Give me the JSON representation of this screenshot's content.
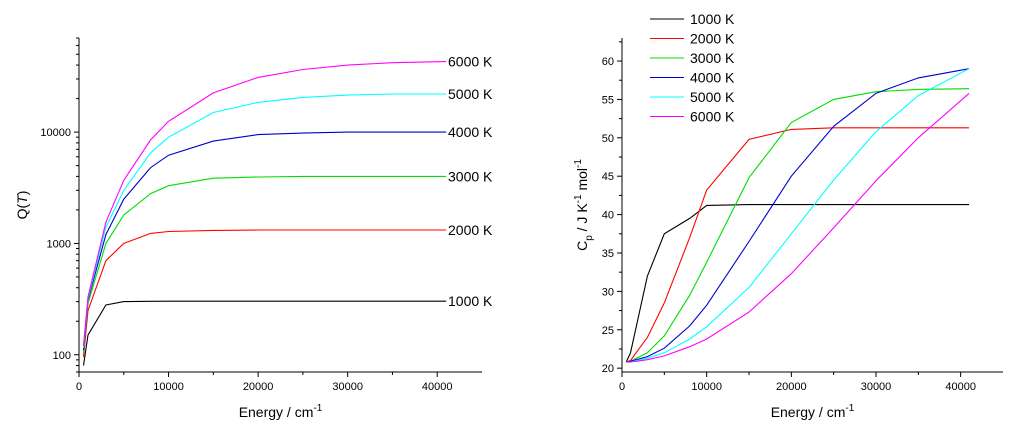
{
  "chart_data": [
    {
      "type": "line",
      "xlabel": "Energy / cm",
      "xlabel_sup": "-1",
      "ylabel": "Q(",
      "ylabel_italic": "T",
      "ylabel_end": ")",
      "yscale": "log",
      "xlim": [
        0,
        45000
      ],
      "ylim": [
        70,
        70000
      ],
      "xticks": [
        0,
        10000,
        20000,
        30000,
        40000
      ],
      "xtick_labels": [
        "0",
        "10000",
        "20000",
        "30000",
        "40000"
      ],
      "yticks": [
        100,
        1000,
        10000
      ],
      "ytick_labels": [
        "100",
        "1000",
        "10000"
      ],
      "grid": false,
      "series_labels_at_line_end": true,
      "series": [
        {
          "name": "1000 K",
          "color": "#000000",
          "x": [
            500,
            1000,
            3000,
            5000,
            8000,
            10000,
            15000,
            20000,
            25000,
            30000,
            35000,
            41000
          ],
          "y": [
            80,
            150,
            280,
            300,
            302,
            303,
            303,
            303,
            303,
            303,
            303,
            303
          ]
        },
        {
          "name": "2000 K",
          "color": "#ff0000",
          "x": [
            500,
            1000,
            3000,
            5000,
            8000,
            10000,
            15000,
            20000,
            25000,
            30000,
            35000,
            41000
          ],
          "y": [
            95,
            250,
            700,
            1000,
            1230,
            1280,
            1310,
            1320,
            1320,
            1320,
            1320,
            1320
          ]
        },
        {
          "name": "3000 K",
          "color": "#00dd00",
          "x": [
            500,
            1000,
            3000,
            5000,
            8000,
            10000,
            15000,
            20000,
            25000,
            30000,
            35000,
            41000
          ],
          "y": [
            105,
            290,
            1000,
            1800,
            2800,
            3300,
            3850,
            3950,
            4000,
            4000,
            4000,
            4000
          ]
        },
        {
          "name": "4000 K",
          "color": "#0000cc",
          "x": [
            500,
            1000,
            3000,
            5000,
            8000,
            10000,
            15000,
            20000,
            25000,
            30000,
            35000,
            41000
          ],
          "y": [
            110,
            310,
            1200,
            2500,
            4800,
            6200,
            8300,
            9500,
            9800,
            10000,
            10000,
            10000
          ]
        },
        {
          "name": "5000 K",
          "color": "#00ffff",
          "x": [
            500,
            1000,
            3000,
            5000,
            8000,
            10000,
            15000,
            20000,
            25000,
            30000,
            35000,
            41000
          ],
          "y": [
            115,
            320,
            1400,
            3000,
            6500,
            9000,
            15000,
            18500,
            20500,
            21500,
            22000,
            22000
          ]
        },
        {
          "name": "6000 K",
          "color": "#ff00ff",
          "x": [
            500,
            1000,
            3000,
            5000,
            8000,
            10000,
            15000,
            20000,
            25000,
            30000,
            35000,
            41000
          ],
          "y": [
            120,
            330,
            1550,
            3700,
            8500,
            12500,
            22500,
            31000,
            36500,
            40000,
            42000,
            43000
          ]
        }
      ]
    },
    {
      "type": "line",
      "xlabel": "Energy / cm",
      "xlabel_sup": "-1",
      "ylabel_parts": [
        "C",
        "p",
        " / J K",
        "-1",
        " mol",
        "-1"
      ],
      "xlim": [
        0,
        45000
      ],
      "ylim": [
        19.5,
        63
      ],
      "xticks": [
        0,
        10000,
        20000,
        30000,
        40000
      ],
      "xtick_labels": [
        "0",
        "10000",
        "20000",
        "30000",
        "40000"
      ],
      "yticks": [
        20,
        25,
        30,
        35,
        40,
        45,
        50,
        55,
        60
      ],
      "ytick_labels": [
        "20",
        "25",
        "30",
        "35",
        "40",
        "45",
        "50",
        "55",
        "60"
      ],
      "grid": false,
      "legend": "top-left",
      "series": [
        {
          "name": "1000 K",
          "color": "#000000",
          "x": [
            500,
            1000,
            3000,
            5000,
            8000,
            10000,
            15000,
            20000,
            25000,
            30000,
            35000,
            41000
          ],
          "y": [
            20.8,
            22,
            32,
            37.5,
            39.5,
            41.2,
            41.3,
            41.3,
            41.3,
            41.3,
            41.3,
            41.3
          ]
        },
        {
          "name": "2000 K",
          "color": "#ff0000",
          "x": [
            500,
            1000,
            3000,
            5000,
            8000,
            10000,
            15000,
            20000,
            25000,
            30000,
            35000,
            41000
          ],
          "y": [
            20.8,
            21,
            24,
            28.5,
            37,
            43.2,
            49.8,
            51.1,
            51.3,
            51.3,
            51.3,
            51.3
          ]
        },
        {
          "name": "3000 K",
          "color": "#00dd00",
          "x": [
            500,
            1000,
            3000,
            5000,
            8000,
            10000,
            15000,
            20000,
            25000,
            30000,
            35000,
            41000
          ],
          "y": [
            20.8,
            20.9,
            22,
            24.2,
            29.5,
            33.8,
            44.8,
            52,
            55,
            56,
            56.3,
            56.4
          ]
        },
        {
          "name": "4000 K",
          "color": "#0000cc",
          "x": [
            500,
            1000,
            3000,
            5000,
            8000,
            10000,
            15000,
            20000,
            25000,
            30000,
            35000,
            41000
          ],
          "y": [
            20.8,
            20.9,
            21.5,
            22.6,
            25.5,
            28.2,
            36.5,
            45,
            51.5,
            55.8,
            57.8,
            59
          ]
        },
        {
          "name": "5000 K",
          "color": "#00ffff",
          "x": [
            500,
            1000,
            3000,
            5000,
            8000,
            10000,
            15000,
            20000,
            25000,
            30000,
            35000,
            41000
          ],
          "y": [
            20.8,
            20.8,
            21.3,
            22,
            23.8,
            25.4,
            30.5,
            37.5,
            44.5,
            50.8,
            55.5,
            59
          ]
        },
        {
          "name": "6000 K",
          "color": "#ff00ff",
          "x": [
            500,
            1000,
            3000,
            5000,
            8000,
            10000,
            15000,
            20000,
            25000,
            30000,
            35000,
            41000
          ],
          "y": [
            20.8,
            20.8,
            21.1,
            21.6,
            22.8,
            23.8,
            27.3,
            32.3,
            38.3,
            44.4,
            50,
            55.8
          ]
        }
      ]
    }
  ]
}
